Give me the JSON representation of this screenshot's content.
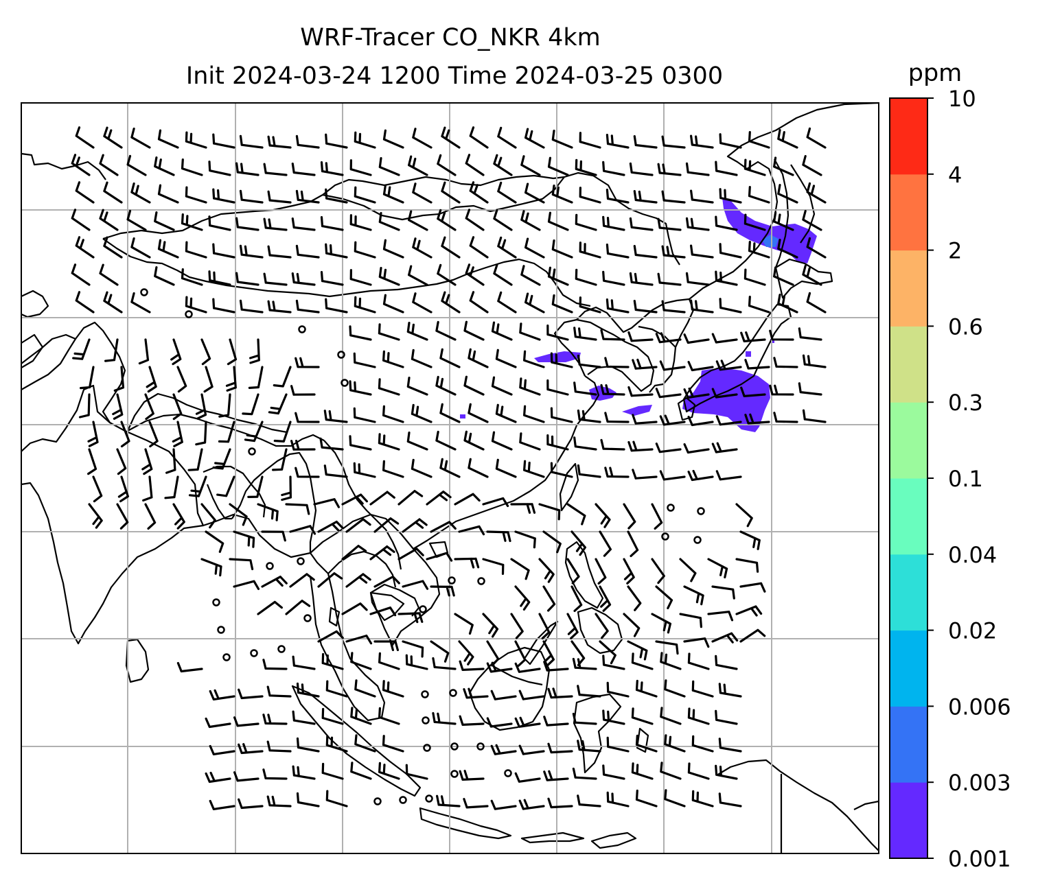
{
  "chart_data": {
    "type": "heatmap",
    "title": "WRF-Tracer CO_NKR 4km",
    "subtitle": "Init 2024-03-24 1200 Time 2024-03-25 0300",
    "xlabel": "",
    "ylabel": "",
    "grid": true,
    "colorbar": {
      "label": "ppm",
      "placement": "right",
      "levels": [
        {
          "label": "0.001",
          "value": 0.001,
          "color": "#6429ff"
        },
        {
          "label": "0.003",
          "value": 0.003,
          "color": "#3473f5"
        },
        {
          "label": "0.006",
          "value": 0.006,
          "color": "#00b4ee"
        },
        {
          "label": "0.02",
          "value": 0.02,
          "color": "#2ddfd8"
        },
        {
          "label": "0.04",
          "value": 0.04,
          "color": "#69fdbe"
        },
        {
          "label": "0.1",
          "value": 0.1,
          "color": "#9bfa9d"
        },
        {
          "label": "0.3",
          "value": 0.3,
          "color": "#cfe188"
        },
        {
          "label": "0.6",
          "value": 0.6,
          "color": "#fdb366"
        },
        {
          "label": "2",
          "value": 2,
          "color": "#ff7340"
        },
        {
          "label": "4",
          "value": 4,
          "color": "#fe2a16"
        },
        {
          "label": "10",
          "value": 10,
          "color": ""
        }
      ]
    }
  }
}
